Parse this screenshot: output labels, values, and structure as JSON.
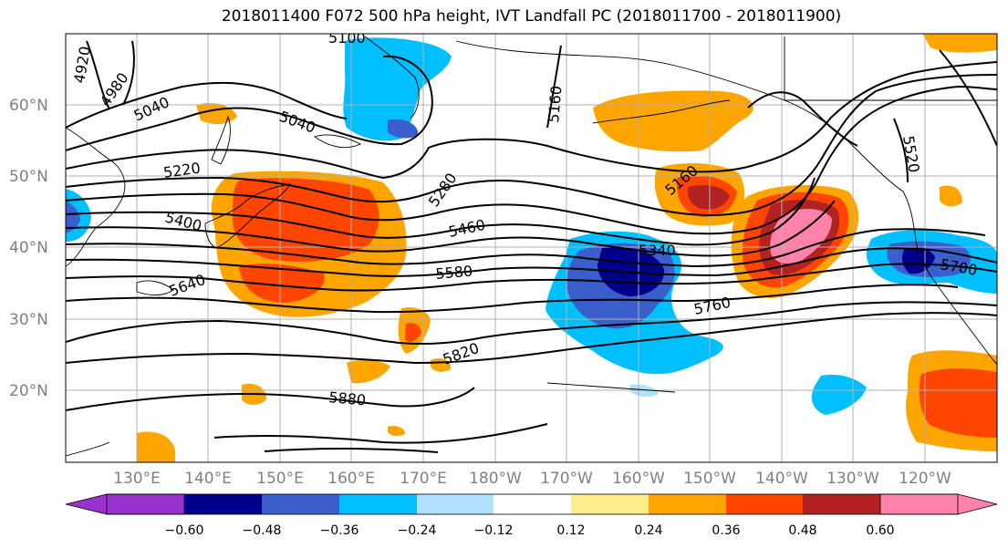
{
  "title": "2018011400 F072 500 hPa height, IVT Landfall PC (2018011700 - 2018011900)",
  "lat_labels": [
    "60°N",
    "50°N",
    "40°N",
    "30°N",
    "20°N"
  ],
  "lon_labels": [
    "130°E",
    "140°E",
    "150°E",
    "160°E",
    "170°E",
    "180°W",
    "170°W",
    "160°W",
    "150°W",
    "140°W",
    "130°W",
    "120°W"
  ],
  "contour_labels": [
    "4920",
    "4980",
    "5040",
    "5040",
    "5100",
    "5160",
    "5160",
    "5220",
    "5280",
    "5340",
    "5400",
    "5460",
    "5520",
    "5580",
    "5640",
    "5700",
    "5760",
    "5820",
    "5880"
  ],
  "colorbar": {
    "ticks": [
      "−0.60",
      "−0.48",
      "−0.36",
      "−0.24",
      "−0.12",
      "0.12",
      "0.24",
      "0.36",
      "0.48",
      "0.60"
    ],
    "colors": [
      "#9932CC",
      "#00008B",
      "#3A5FCD",
      "#00BFFF",
      "#B0E2FF",
      "#FFFFFF",
      "#FFEC8B",
      "#FFA500",
      "#FF4500",
      "#B22222",
      "#FF82AB"
    ]
  }
}
